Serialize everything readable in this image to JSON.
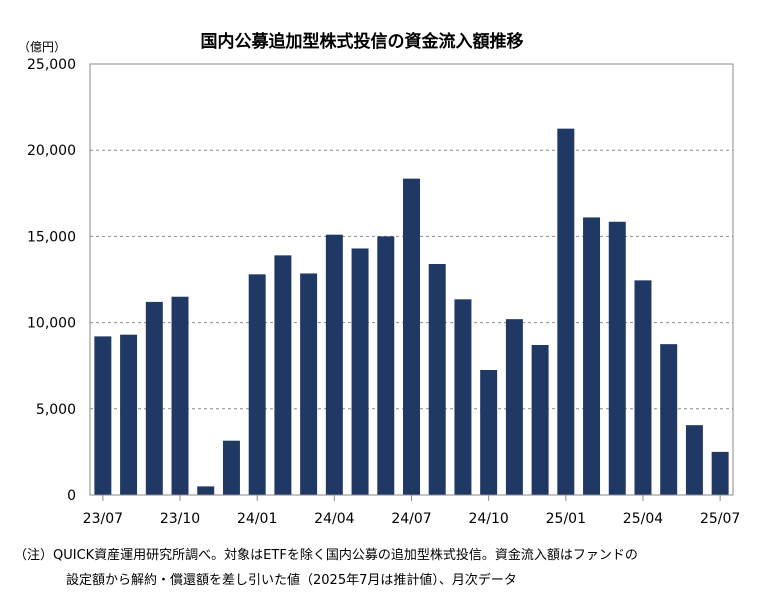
{
  "chart_data": {
    "type": "bar",
    "title": "国内公募追加型株式投信の資金流入額推移",
    "unit_label": "（億円）",
    "ylim": [
      0,
      25000
    ],
    "y_ticks": [
      0,
      5000,
      10000,
      15000,
      20000,
      25000
    ],
    "y_tick_labels": [
      "0",
      "5,000",
      "10,000",
      "15,000",
      "20,000",
      "25,000"
    ],
    "grid": true,
    "color": "#1f3864",
    "categories": [
      "23/07",
      "23/08",
      "23/09",
      "23/10",
      "23/11",
      "23/12",
      "24/01",
      "24/02",
      "24/03",
      "24/04",
      "24/05",
      "24/06",
      "24/07",
      "24/08",
      "24/09",
      "24/10",
      "24/11",
      "24/12",
      "25/01",
      "25/02",
      "25/03",
      "25/04",
      "25/05",
      "25/06",
      "25/07"
    ],
    "x_tick_labels": [
      "23/07",
      "23/10",
      "24/01",
      "24/04",
      "24/07",
      "24/10",
      "25/01",
      "25/04",
      "25/07"
    ],
    "values": [
      9200,
      9300,
      11200,
      11500,
      500,
      3150,
      12800,
      13900,
      12850,
      15100,
      14300,
      15000,
      18350,
      13400,
      11350,
      7250,
      10200,
      8700,
      21250,
      16100,
      15850,
      12450,
      8750,
      4050,
      2500
    ]
  },
  "notes": {
    "line1": "（注）QUICK資産運用研究所調べ。対象はETFを除く国内公募の追加型株式投信。資金流入額はファンドの",
    "line2": "設定額から解約・償還額を差し引いた値（2025年7月は推計値）、月次データ"
  }
}
